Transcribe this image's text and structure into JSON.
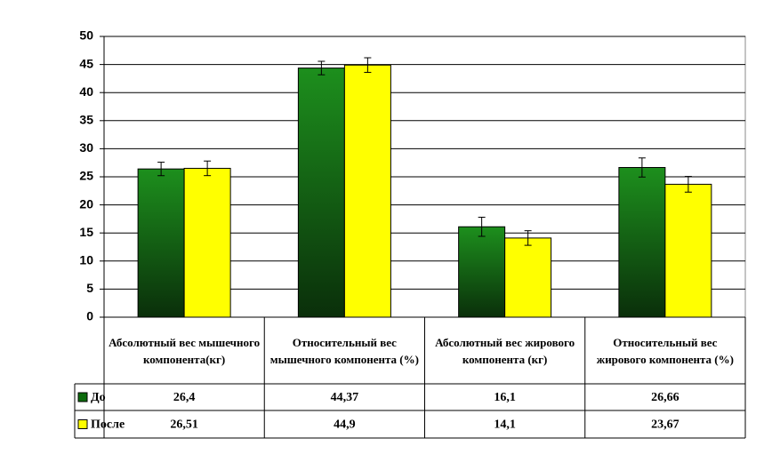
{
  "chart_data": {
    "type": "bar",
    "categories": [
      "Абсолютный вес мышечного компонента(кг)",
      "Относительный вес мышечного компонента (%)",
      "Абсолютный вес жирового компонента (кг)",
      "Относительный вес жирового компонента (%)"
    ],
    "series": [
      {
        "name": "До",
        "color": "#0d6b0d",
        "values": [
          26.4,
          44.37,
          16.1,
          26.66
        ],
        "value_labels": [
          "26,4",
          "44,37",
          "16,1",
          "26,66"
        ],
        "errors": [
          1.2,
          1.2,
          1.7,
          1.7
        ]
      },
      {
        "name": "После",
        "color": "#ffff00",
        "values": [
          26.51,
          44.9,
          14.1,
          23.67
        ],
        "value_labels": [
          "26,51",
          "44,9",
          "14,1",
          "23,67"
        ],
        "errors": [
          1.3,
          1.3,
          1.3,
          1.4
        ]
      }
    ],
    "ylim": [
      0,
      50
    ],
    "yticks": [
      0,
      5,
      10,
      15,
      20,
      25,
      30,
      35,
      40,
      45,
      50
    ],
    "grid": true
  }
}
